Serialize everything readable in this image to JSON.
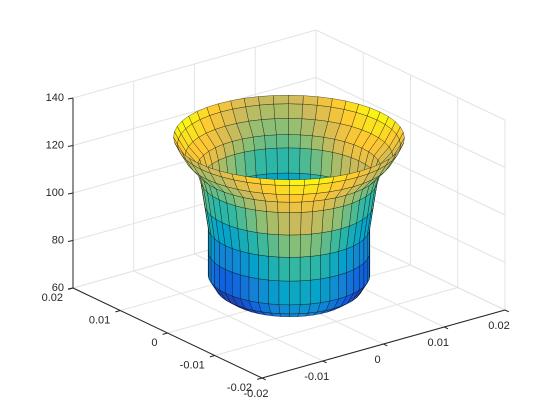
{
  "chart_data": {
    "type": "surface",
    "colormap": "parula",
    "grid": true,
    "xlim": [
      -0.02,
      0.02
    ],
    "xticks": [
      -0.02,
      -0.01,
      0,
      0.01,
      0.02
    ],
    "ylim": [
      -0.02,
      0.02
    ],
    "yticks": [
      -0.02,
      -0.01,
      0,
      0.01,
      0.02
    ],
    "zlim": [
      60,
      140
    ],
    "zticks": [
      60,
      80,
      100,
      120,
      140
    ],
    "surface": {
      "z": [
        62,
        65,
        70,
        80,
        90,
        100,
        110,
        115,
        120,
        125,
        128
      ],
      "radius": [
        0.008,
        0.0095,
        0.0105,
        0.0105,
        0.0105,
        0.011,
        0.0115,
        0.012,
        0.0135,
        0.0145,
        0.015
      ]
    }
  }
}
